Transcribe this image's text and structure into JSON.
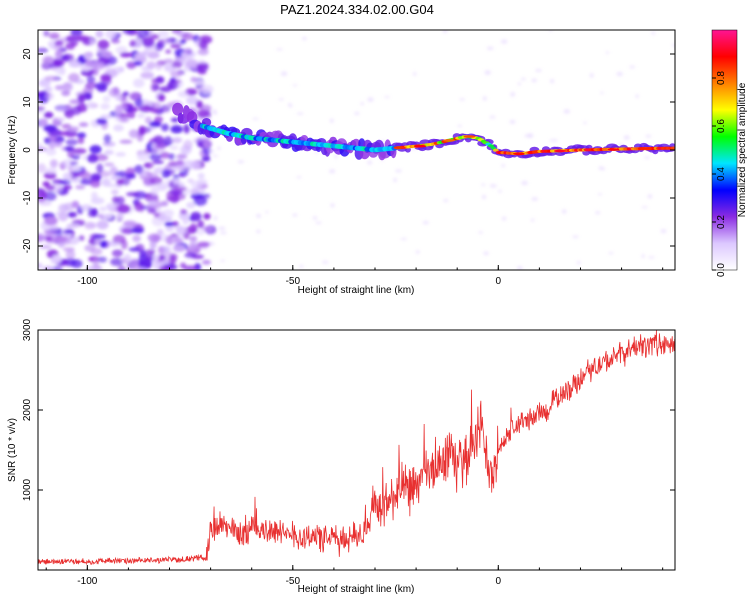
{
  "title": "PAZ1.2024.334.02.00.G04",
  "chart_data": [
    {
      "type": "heatmap",
      "xlabel": "Height of straight line (km)",
      "ylabel": "Frequency (Hz)",
      "xlim": [
        -112,
        43
      ],
      "ylim": [
        -25,
        25
      ],
      "xticks": [
        -100,
        -50,
        0
      ],
      "xtick_labels": [
        "-100",
        "-50",
        "0"
      ],
      "yticks": [
        -20,
        -10,
        0,
        10,
        20
      ],
      "ytick_labels": [
        "-20",
        "-10",
        "0",
        "10",
        "20"
      ],
      "ridge": {
        "x": [
          -78,
          -72,
          -66,
          -60,
          -54,
          -48,
          -42,
          -36,
          -30,
          -24,
          -20,
          -16,
          -12,
          -8,
          -5,
          -2,
          0,
          5,
          10,
          20,
          30,
          43
        ],
        "y": [
          8,
          5,
          3.5,
          2.5,
          2,
          1.5,
          1,
          0.5,
          0,
          0.5,
          0.8,
          1.2,
          2,
          2.8,
          2.5,
          1,
          -0.5,
          -0.8,
          -0.3,
          0,
          0.2,
          0.4
        ]
      },
      "colorbar": {
        "label": "Normalized spectral amplitude",
        "range": [
          0,
          1
        ],
        "ticks": [
          0.0,
          0.2,
          0.4,
          0.6,
          0.8
        ],
        "tick_labels": [
          "0.0",
          "0.2",
          "0.4",
          "0.6",
          "0.8"
        ],
        "colors": [
          "#ffffff",
          "#dcc8ff",
          "#8a2be2",
          "#0000ff",
          "#00e5ff",
          "#00ff00",
          "#ffff00",
          "#ff8000",
          "#ff0000",
          "#ff1493"
        ]
      },
      "grid": false
    },
    {
      "type": "line",
      "xlabel": "Height of straight line (km)",
      "ylabel": "SNR (10 * v/v)",
      "xlim": [
        -112,
        43
      ],
      "ylim": [
        0,
        3000
      ],
      "xticks": [
        -100,
        -50,
        0
      ],
      "xtick_labels": [
        "-100",
        "-50",
        "0"
      ],
      "yticks": [
        1000,
        2000,
        3000
      ],
      "ytick_labels": [
        "1000",
        "2000",
        "3000"
      ],
      "color": "#e83030",
      "series": [
        {
          "x": [
            -112,
            -105,
            -100,
            -95,
            -90,
            -85,
            -80,
            -75,
            -71,
            -70,
            -68,
            -65,
            -62,
            -60,
            -57,
            -55,
            -52,
            -50,
            -48,
            -45,
            -42,
            -40,
            -38,
            -35,
            -32,
            -30,
            -28,
            -25,
            -22,
            -20,
            -18,
            -16,
            -14,
            -12,
            -10,
            -8,
            -6,
            -4,
            -3,
            -2,
            -1,
            0,
            2,
            4,
            6,
            8,
            10,
            12,
            14,
            16,
            18,
            20,
            22,
            24,
            26,
            28,
            30,
            32,
            34,
            36,
            38,
            40,
            43
          ],
          "y": [
            100,
            110,
            100,
            120,
            110,
            120,
            130,
            140,
            160,
            500,
            550,
            500,
            450,
            550,
            480,
            520,
            400,
            500,
            380,
            450,
            360,
            420,
            340,
            450,
            450,
            850,
            750,
            950,
            1000,
            1050,
            1150,
            1250,
            1300,
            1500,
            1300,
            1400,
            1600,
            1800,
            1500,
            1100,
            1250,
            1500,
            1650,
            1800,
            1850,
            1900,
            1950,
            2000,
            2150,
            2200,
            2300,
            2400,
            2500,
            2550,
            2600,
            2650,
            2700,
            2750,
            2800,
            2800,
            2850,
            2800,
            2800
          ]
        }
      ],
      "grid": false
    }
  ]
}
